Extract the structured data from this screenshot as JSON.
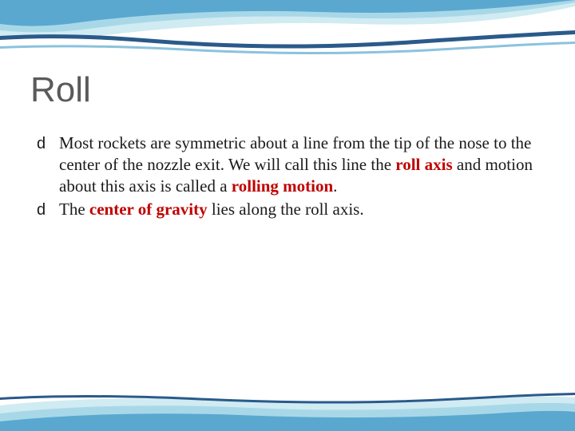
{
  "title": "Roll",
  "bullets": [
    {
      "segments": [
        {
          "text": "Most rockets are symmetric about a line from the tip of the nose to the center of the nozzle exit. We will call this line the ",
          "style": "normal"
        },
        {
          "text": "roll axis ",
          "style": "red-bold"
        },
        {
          "text": "and motion about this axis is called a ",
          "style": "normal"
        },
        {
          "text": "rolling motion",
          "style": "red-bold"
        },
        {
          "text": ".",
          "style": "normal"
        }
      ]
    },
    {
      "segments": [
        {
          "text": "The ",
          "style": "normal"
        },
        {
          "text": "center of gravity ",
          "style": "red-bold"
        },
        {
          "text": "lies along the roll axis.",
          "style": "normal"
        }
      ]
    }
  ],
  "bullet_glyph": "d",
  "theme": {
    "title_color": "#5a5a5a",
    "title_fontsize": 44,
    "body_fontsize": 21,
    "body_color": "#1a1a1a",
    "highlight_color": "#c00000",
    "background": "#ffffff",
    "wave_colors": {
      "dark": "#2a5a8a",
      "medium": "#5aa8d0",
      "light": "#a8d8e8",
      "pale": "#d0ebf2"
    }
  }
}
